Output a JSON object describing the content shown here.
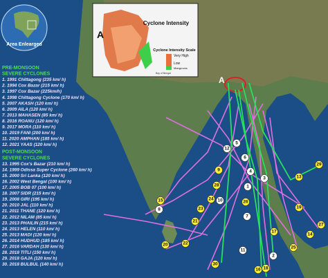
{
  "globe": {
    "label": "Area Enlearged"
  },
  "inset": {
    "letter": "A",
    "title": "Cyclone Intensity",
    "scale_title": "Cyclone Intensity Scale",
    "high": "Very High",
    "low": "Low",
    "mangroves": "Mangroves",
    "sea": "Bay of Bengal"
  },
  "main_map": {
    "letter": "A"
  },
  "legend": {
    "pre_title": [
      "PRE-MONSOON",
      "SEVERE CYCLONES"
    ],
    "pre": [
      "1. 1991 Chittagong (235 km/ h)",
      "2. 1994 Cox Bazar (215 km/ h)",
      "3. 1997 Cox Bazar (225km/h)",
      "4. 1998 Chittagong Cyclone (170 km/ h)",
      "5. 2007 AKASH (120 km/ h)",
      "6. 2009 AILA (120 km/ h)",
      "7. 2013 MAHASEN (85 km/ h)",
      "8. 2016 ROANU (120 km/ h)",
      "9. 2017 MORA (110 km/ h)",
      "10. 2019 FANI (200 km/ h)",
      "11. 2020 AMPHAN (185 km/ h)",
      "12. 2021 YAAS (120 km/ h)"
    ],
    "post_title": [
      "POST-MONSOON",
      "SEVERE CYCLONES"
    ],
    "post": [
      "13. 1995 Cox's Bazar (210 km/ h)",
      "14. 1999 Odissa Super Cyclone (260 km/ h)",
      "15. 2000 Sri Lanka (120 km/ h)",
      "16. 2002 West Bengal (100 km/ h)",
      "17. 2005 BOB 07 (100 km/ h)",
      "18. 2007 SIDR (215 km/ h)",
      "19. 2008 GIRI (195 km/ h)",
      "20. 2010 JAL (110 km/ h)",
      "21. 2011 THANE (120 km/ h)",
      "22. 2012 NILAM (85 km/ h)",
      "23. 2013 PHAILIN (215 km/ h)",
      "24. 2013 HELEN (110 km/ h)",
      "25. 2013 MADI (120 km/ h)",
      "26. 2014 HUDHUD (185 km/ h)",
      "27. 2016 VARDAH (130 km/ h)",
      "28. 2018 TITLI (150 km/ h)",
      "29. 2018 GAJA (120 km/ h)",
      "30. 2018 BULBUL (140 km/ h)"
    ]
  },
  "markers": [
    "5",
    "12",
    "6",
    "4",
    "9",
    "28",
    "3",
    "1",
    "29",
    "13",
    "24",
    "15",
    "8",
    "10",
    "23",
    "22",
    "21",
    "7",
    "26",
    "19",
    "14",
    "27",
    "25",
    "17",
    "11",
    "2",
    "18",
    "16",
    "30",
    "20"
  ]
}
